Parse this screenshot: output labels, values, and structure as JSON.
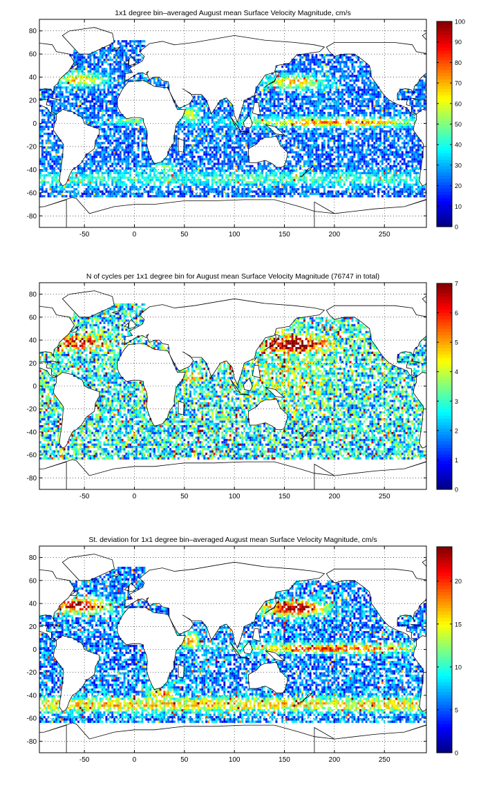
{
  "chart_data": [
    {
      "type": "heatmap",
      "title": "1x1 degree bin–averaged August mean Surface Velocity Magnitude, cm/s",
      "xlim": [
        -95,
        292
      ],
      "ylim": [
        -90,
        90
      ],
      "xticks": [
        -50,
        0,
        50,
        100,
        150,
        200,
        250
      ],
      "yticks": [
        -80,
        -60,
        -40,
        -20,
        0,
        20,
        40,
        60,
        80
      ],
      "grid": true,
      "colorbar": {
        "min": 0,
        "max": 100,
        "ticks": [
          0,
          10,
          20,
          30,
          40,
          50,
          60,
          70,
          80,
          90,
          100
        ]
      },
      "colormap": "jet",
      "field": "velocity"
    },
    {
      "type": "heatmap",
      "title": "N of cycles per 1x1 degree bin for August mean Surface Velocity Magnitude (76747 in total)",
      "xlim": [
        -95,
        292
      ],
      "ylim": [
        -90,
        90
      ],
      "xticks": [
        -50,
        0,
        50,
        100,
        150,
        200,
        250
      ],
      "yticks": [
        -80,
        -60,
        -40,
        -20,
        0,
        20,
        40,
        60,
        80
      ],
      "grid": true,
      "colorbar": {
        "min": 0,
        "max": 7,
        "ticks": [
          0,
          1,
          2,
          3,
          4,
          5,
          6,
          7
        ]
      },
      "colormap": "jet",
      "field": "count"
    },
    {
      "type": "heatmap",
      "title": "St. deviation for 1x1 degree bin–averaged August mean Surface Velocity Magnitude, cm/s",
      "xlim": [
        -95,
        292
      ],
      "ylim": [
        -90,
        90
      ],
      "xticks": [
        -50,
        0,
        50,
        100,
        150,
        200,
        250
      ],
      "yticks": [
        -80,
        -60,
        -40,
        -20,
        0,
        20,
        40,
        60,
        80
      ],
      "grid": true,
      "colorbar": {
        "min": 0,
        "max": 24,
        "ticks": [
          0,
          5,
          10,
          15,
          20
        ]
      },
      "colormap": "jet",
      "field": "stdev"
    }
  ]
}
